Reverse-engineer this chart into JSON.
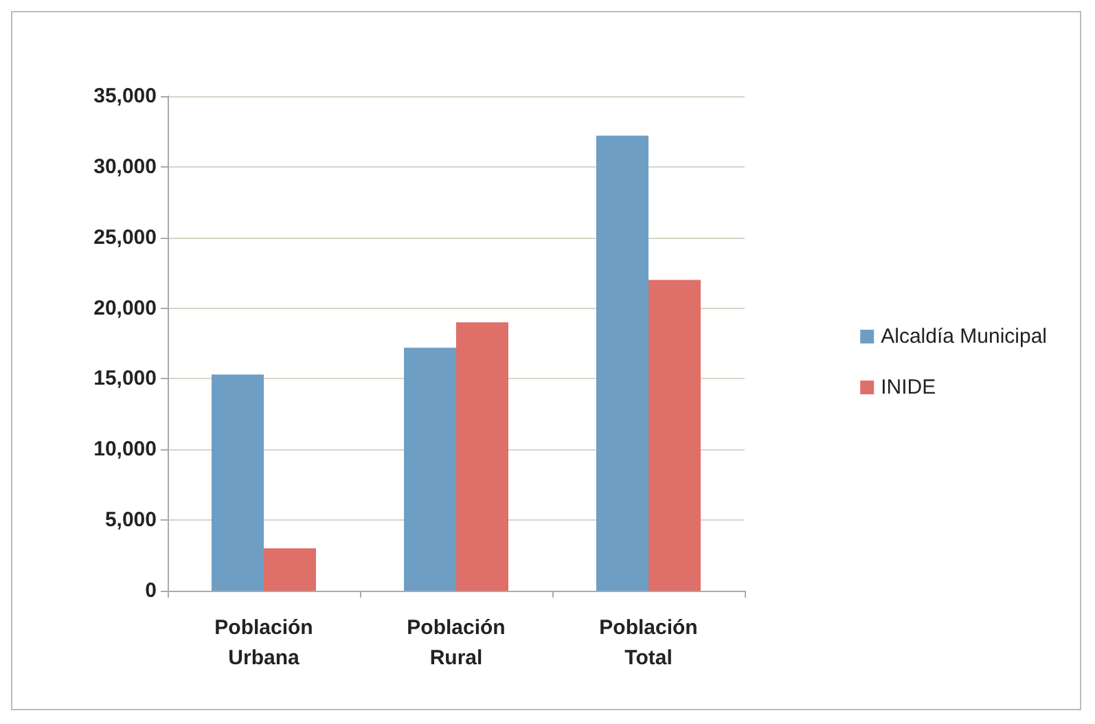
{
  "chart_data": {
    "type": "bar",
    "categories": [
      "Población Urbana",
      "Población Rural",
      "Población Total"
    ],
    "series": [
      {
        "name": "Alcaldía Municipal",
        "color": "#6f9ec4",
        "values": [
          15300,
          17200,
          32200
        ]
      },
      {
        "name": "INIDE",
        "color": "#df6f69",
        "values": [
          3000,
          19000,
          22000
        ]
      }
    ],
    "ylim": [
      0,
      35000
    ],
    "yticks": [
      0,
      {
        "value": 5000,
        "label": "5,000"
      },
      {
        "value": 10000,
        "label": "10,000"
      },
      {
        "value": 15000,
        "label": "15,000"
      },
      {
        "value": 20000,
        "label": "20,000"
      },
      {
        "value": 25000,
        "label": "25,000"
      },
      {
        "value": 30000,
        "label": "30,000"
      },
      {
        "value": 35000,
        "label": "35,000"
      }
    ],
    "grid": "y",
    "legend": "right"
  }
}
